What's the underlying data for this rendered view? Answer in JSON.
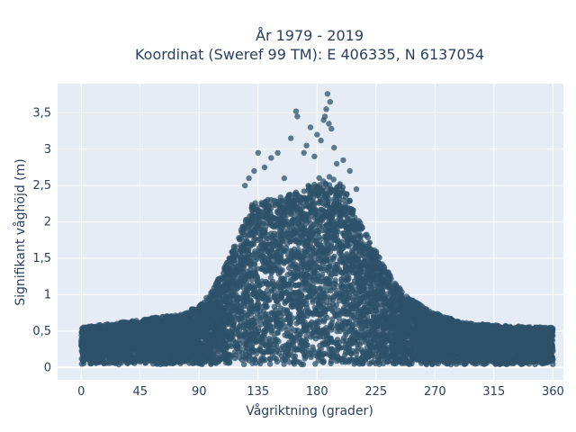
{
  "chart_data": {
    "type": "scatter",
    "title_line1": "År 1979 - 2019",
    "title_line2": "Koordinat (Sweref 99 TM): E 406335, N 6137054",
    "xlabel": "Vågriktning (grader)",
    "ylabel": "Signifikant våghöjd (m)",
    "xlim": [
      -18,
      368
    ],
    "ylim": [
      -0.17,
      3.9
    ],
    "xticks": [
      0,
      45,
      90,
      135,
      180,
      225,
      270,
      315,
      360
    ],
    "xtick_labels": [
      "0",
      "45",
      "90",
      "135",
      "180",
      "225",
      "270",
      "315",
      "360"
    ],
    "yticks": [
      0,
      0.5,
      1,
      1.5,
      2,
      2.5,
      3,
      3.5
    ],
    "ytick_labels": [
      "0",
      "0,5",
      "1",
      "1,5",
      "2",
      "2,5",
      "3",
      "3,5"
    ],
    "grid": true,
    "marker_color": "#2e5269",
    "plot_background": "#e5ecf6",
    "envelope": {
      "x": [
        0,
        20,
        45,
        60,
        75,
        90,
        100,
        110,
        120,
        130,
        140,
        150,
        160,
        170,
        180,
        190,
        200,
        210,
        220,
        230,
        240,
        250,
        260,
        270,
        290,
        315,
        340,
        360
      ],
      "y": [
        0.55,
        0.6,
        0.65,
        0.7,
        0.72,
        0.85,
        1.05,
        1.4,
        1.8,
        2.25,
        2.3,
        2.35,
        2.4,
        2.45,
        2.6,
        2.65,
        2.5,
        2.1,
        1.75,
        1.45,
        1.15,
        0.95,
        0.85,
        0.75,
        0.62,
        0.58,
        0.56,
        0.55
      ]
    },
    "outliers": {
      "x": [
        188,
        190,
        187,
        189,
        164,
        165,
        175,
        180,
        183,
        185,
        191,
        193,
        170,
        160,
        150,
        145,
        140,
        135,
        200,
        205,
        155,
        172,
        178,
        186,
        132,
        128,
        125,
        195,
        210
      ],
      "y": [
        3.76,
        3.65,
        3.55,
        3.35,
        3.52,
        3.45,
        3.3,
        3.2,
        3.12,
        3.4,
        3.28,
        3.02,
        2.95,
        3.15,
        2.95,
        2.88,
        2.75,
        2.95,
        2.85,
        2.7,
        2.6,
        3.05,
        2.9,
        3.45,
        2.7,
        2.6,
        2.5,
        2.8,
        2.45
      ]
    },
    "series_points": 9000
  }
}
